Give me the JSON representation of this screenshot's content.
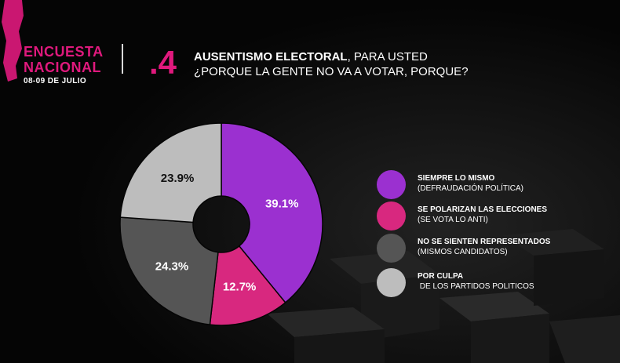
{
  "header": {
    "brand_line1": "ENCUESTA",
    "brand_line2": "NACIONAL",
    "date": "08-09 DE JULIO",
    "question_number": ".4",
    "question_bold": "AUSENTISMO ELECTORAL",
    "question_rest": ", PARA USTED",
    "question_line2": "¿PORQUE LA GENTE NO VA A VOTAR, PORQUE?"
  },
  "colors": {
    "accent": "#e0197d",
    "background": "#050505"
  },
  "chart_data": {
    "type": "pie",
    "donut": true,
    "slices": [
      {
        "label": "SIEMPRE LO MISMO",
        "sublabel": "(DEFRAUDACIÓN POLÍTICA)",
        "value": 39.1,
        "display": "39.1%",
        "color": "#9b30d0"
      },
      {
        "label": "SE POLARIZAN LAS ELECCIONES",
        "sublabel": "(SE VOTA LO ANTI)",
        "value": 12.7,
        "display": "12.7%",
        "color": "#d8287f"
      },
      {
        "label": "NO SE SIENTEN REPRESENTADOS",
        "sublabel": "(MISMOS CANDIDATOS)",
        "value": 24.3,
        "display": "24.3%",
        "color": "#555555"
      },
      {
        "label": "POR CULPA",
        "sublabel": " DE LOS PARTIDOS POLITICOS",
        "value": 23.9,
        "display": "23.9%",
        "color": "#bdbdbd"
      }
    ]
  }
}
